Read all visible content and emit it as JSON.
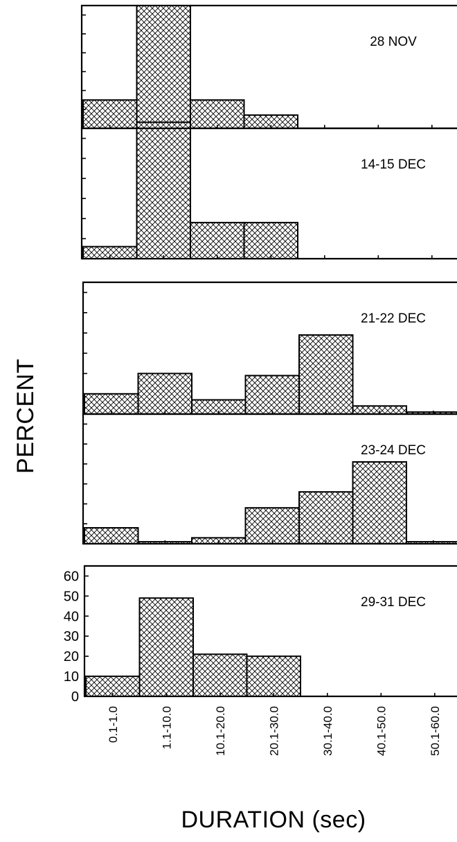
{
  "chart_data": {
    "type": "bar",
    "xlabel": "DURATION (sec)",
    "ylabel": "PERCENT",
    "ylim": [
      0,
      65
    ],
    "yticks": [
      0,
      10,
      20,
      30,
      40,
      50,
      60
    ],
    "categories": [
      "0.1-1.0",
      "1.1-10.0",
      "10.1-20.0",
      "20.1-30.0",
      "30.1-40.0",
      "40.1-50.0",
      "50.1-60.0"
    ],
    "panels": [
      {
        "label": "28 NOV",
        "values": [
          15,
          65,
          15,
          7,
          0,
          0,
          0
        ]
      },
      {
        "label": "14-15 DEC",
        "values": [
          6,
          68,
          18,
          18,
          0,
          0,
          0
        ]
      },
      {
        "label": "21-22 DEC",
        "values": [
          10,
          20,
          7,
          19,
          39,
          4,
          1
        ]
      },
      {
        "label": "23-24 DEC",
        "values": [
          8,
          1,
          3,
          18,
          26,
          41,
          1
        ]
      },
      {
        "label": "29-31 DEC",
        "values": [
          10,
          49,
          21,
          20,
          0,
          0,
          0
        ]
      }
    ]
  }
}
